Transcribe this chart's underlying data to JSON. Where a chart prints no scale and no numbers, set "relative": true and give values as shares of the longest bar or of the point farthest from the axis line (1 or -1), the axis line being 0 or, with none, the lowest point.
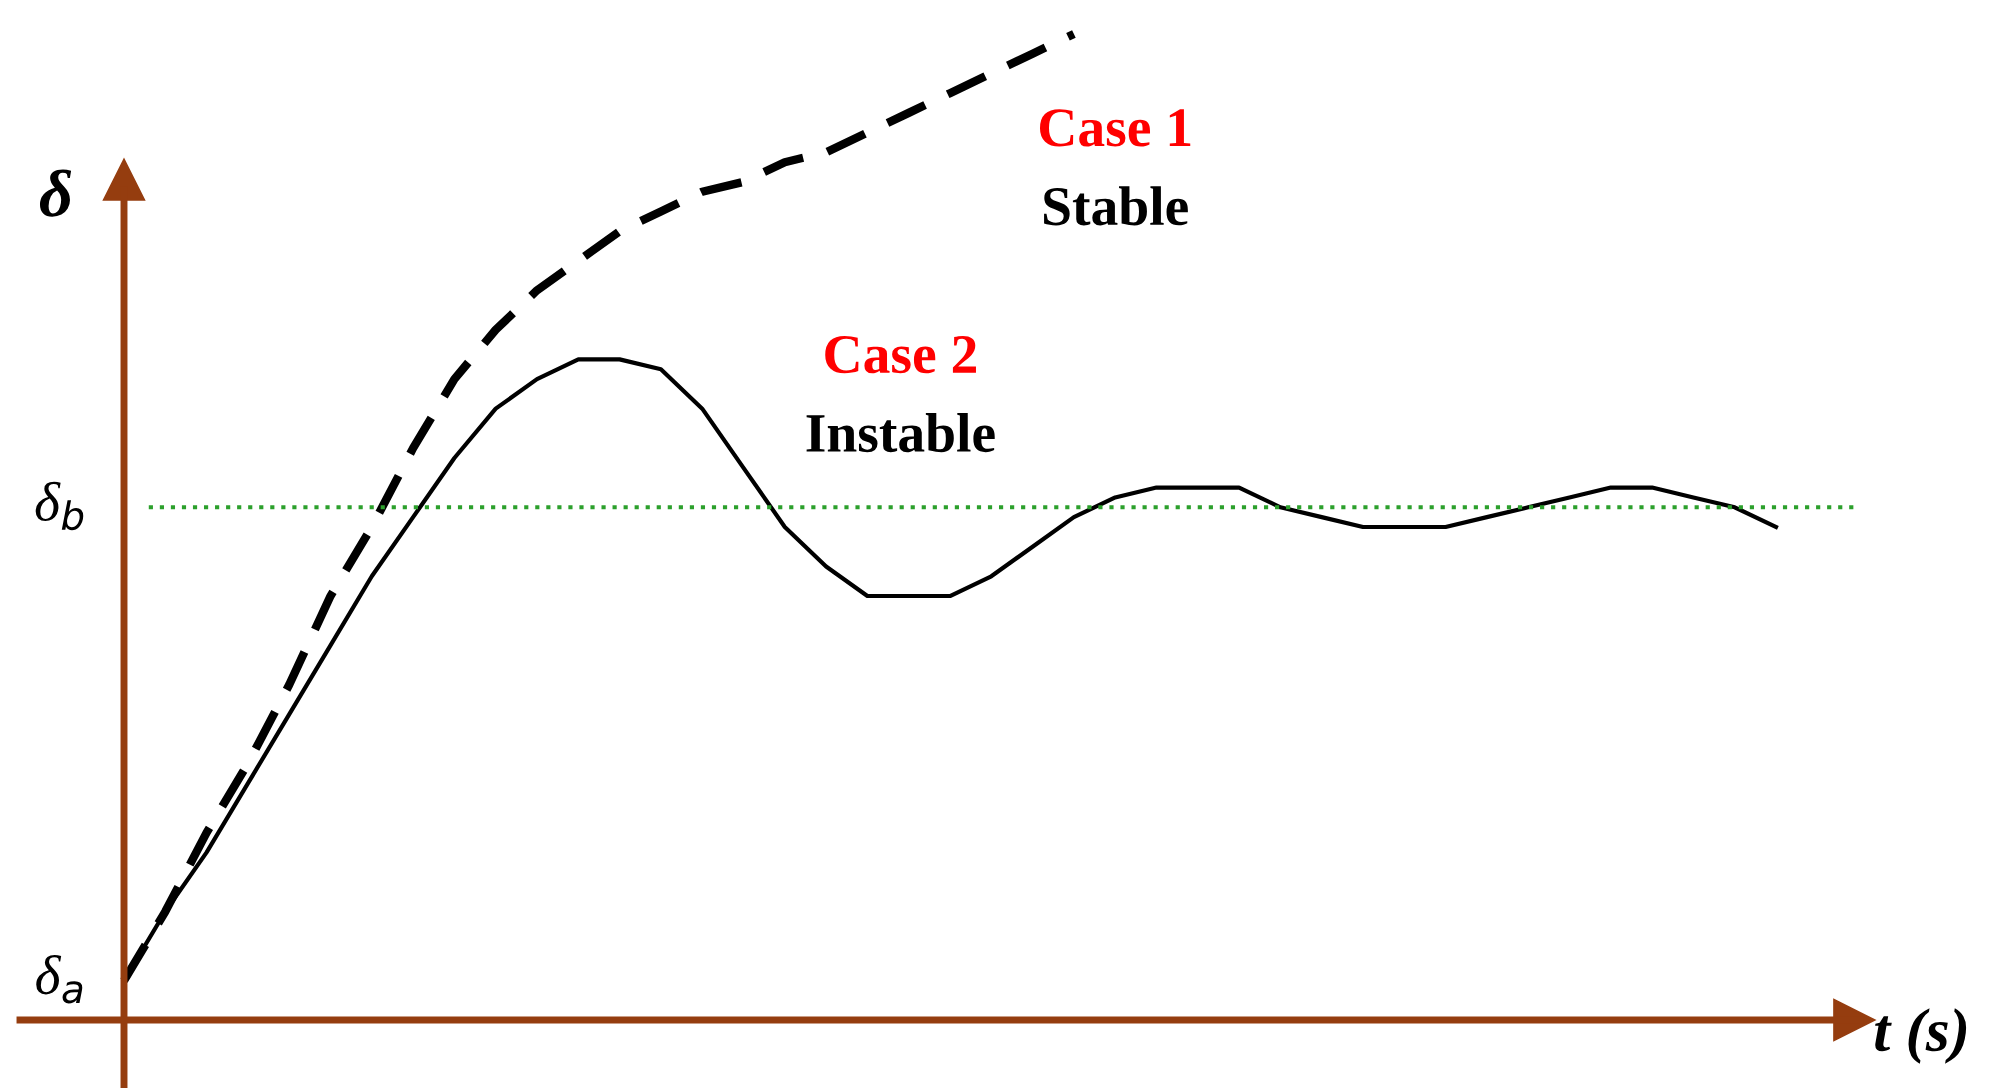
{
  "chart_data": {
    "type": "line",
    "relative": true,
    "xlabel": "t (s)",
    "ylabel": "δ",
    "categories": [
      null,
      null,
      null,
      null,
      null,
      null,
      null,
      null,
      null,
      null,
      null,
      null,
      null,
      null,
      null,
      null,
      null,
      null,
      null,
      null,
      null,
      null,
      null,
      null,
      null,
      null,
      null,
      null,
      null,
      null,
      null,
      null,
      null,
      null,
      null,
      null,
      null,
      null,
      null,
      null,
      null
    ],
    "series": [
      {
        "color": "#000000",
        "line_style": "dashed",
        "values": [
          0.04,
          0.11,
          0.19,
          0.26,
          0.34,
          0.43,
          0.5,
          0.58,
          0.65,
          0.7,
          0.74,
          0.77,
          0.8,
          0.82,
          0.84,
          0.85,
          0.87,
          0.88,
          0.9,
          0.92,
          0.94,
          0.96,
          0.98,
          1.0,
          null,
          null,
          null,
          null,
          null,
          null,
          null,
          null,
          null,
          null,
          null,
          null,
          null,
          null,
          null,
          null,
          null
        ]
      },
      {
        "color": "#000000",
        "line_style": "solid",
        "values": [
          0.04,
          0.11,
          0.17,
          0.24,
          0.31,
          0.38,
          0.45,
          0.51,
          0.57,
          0.62,
          0.65,
          0.67,
          0.67,
          0.66,
          0.62,
          0.56,
          0.5,
          0.46,
          0.43,
          0.43,
          0.43,
          0.45,
          0.48,
          0.51,
          0.53,
          0.54,
          0.54,
          0.54,
          0.52,
          0.51,
          0.5,
          0.5,
          0.5,
          0.51,
          0.52,
          0.53,
          0.54,
          0.54,
          0.53,
          0.52,
          0.5
        ]
      }
    ],
    "ref_lines": [
      {
        "axis": "y",
        "value": 0.52,
        "label": "δ$_{b}$",
        "color": "#2ca02c",
        "line_style": "dotted"
      }
    ],
    "annotations": [
      "Case 1",
      "Stable",
      "Case 2",
      "Instable",
      "δ$_{a}$"
    ]
  }
}
